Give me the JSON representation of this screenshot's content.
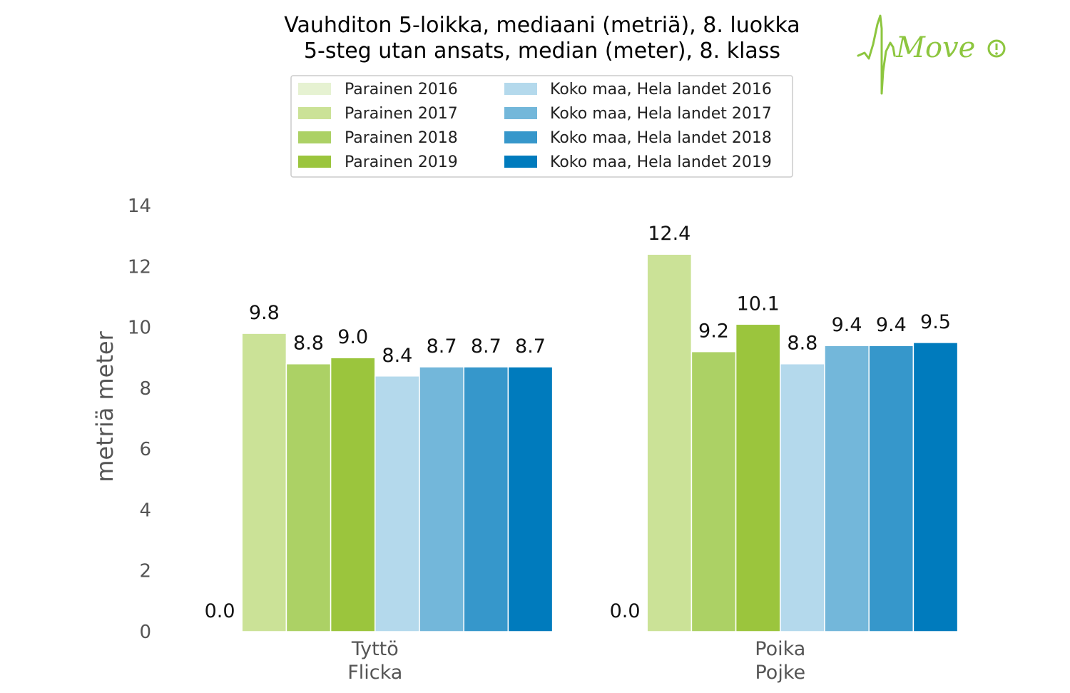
{
  "chart_data": {
    "type": "bar",
    "title": [
      "Vauhditon 5-loikka, mediaani (metriä), 8. luokka",
      "5-steg utan ansats, median (meter), 8. klass"
    ],
    "ylabel": "metriä meter",
    "ylim": [
      0,
      14
    ],
    "yticks": [
      0,
      2,
      4,
      6,
      8,
      10,
      12,
      14
    ],
    "grid": false,
    "legend_placement": "top-center",
    "categories": [
      {
        "line1": "Tyttö",
        "line2": "Flicka"
      },
      {
        "line1": "Poika",
        "line2": "Pojke"
      }
    ],
    "series": [
      {
        "name": "Parainen  2016",
        "color": "#e6f2d2",
        "values": [
          0.0,
          0.0
        ],
        "labels": [
          "0.0",
          "0.0"
        ]
      },
      {
        "name": "Parainen  2017",
        "color": "#cbe297",
        "values": [
          9.8,
          12.4
        ],
        "labels": [
          "9.8",
          "12.4"
        ]
      },
      {
        "name": "Parainen  2018",
        "color": "#acd165",
        "values": [
          8.8,
          9.2
        ],
        "labels": [
          "8.8",
          "9.2"
        ]
      },
      {
        "name": "Parainen  2019",
        "color": "#9bc53d",
        "values": [
          9.0,
          10.1
        ],
        "labels": [
          "9.0",
          "10.1"
        ]
      },
      {
        "name": "Koko maa, Hela landet 2016",
        "color": "#b4d9ec",
        "values": [
          8.4,
          8.8
        ],
        "labels": [
          "8.4",
          "8.8"
        ]
      },
      {
        "name": "Koko maa, Hela landet 2017",
        "color": "#73b7da",
        "values": [
          8.7,
          9.4
        ],
        "labels": [
          "8.7",
          "9.4"
        ]
      },
      {
        "name": "Koko maa, Hela landet 2018",
        "color": "#3697cb",
        "values": [
          8.7,
          9.4
        ],
        "labels": [
          "8.7",
          "9.4"
        ]
      },
      {
        "name": "Koko maa, Hela landet 2019",
        "color": "#007bbd",
        "values": [
          8.7,
          9.5
        ],
        "labels": [
          "8.7",
          "9.5"
        ]
      }
    ]
  },
  "logo": {
    "text": "Move",
    "icon": "move-logo-icon",
    "color": "#8dc63f"
  }
}
